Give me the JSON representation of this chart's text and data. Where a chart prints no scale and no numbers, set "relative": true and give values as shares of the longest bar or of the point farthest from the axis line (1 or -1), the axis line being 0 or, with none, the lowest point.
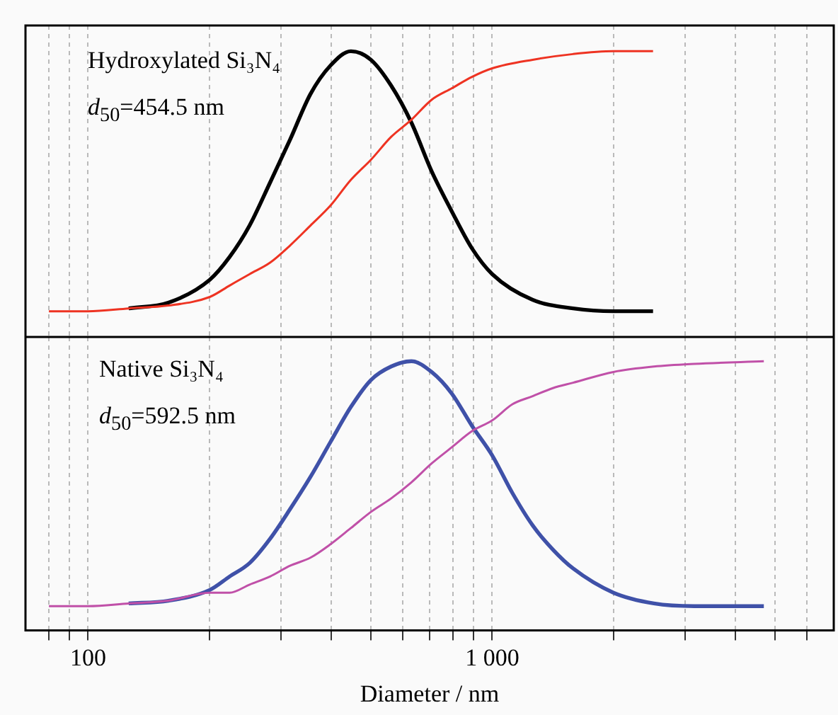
{
  "chart_data": [
    {
      "type": "line",
      "relative": true,
      "log": "x",
      "xlim": [
        70,
        7000
      ],
      "xticks": [
        {
          "value": 80,
          "label": null
        },
        {
          "value": 90,
          "label": null
        },
        {
          "value": 100,
          "label": null
        },
        {
          "value": 200,
          "label": null
        },
        {
          "value": 300,
          "label": null
        },
        {
          "value": 400,
          "label": null
        },
        {
          "value": 500,
          "label": null
        },
        {
          "value": 600,
          "label": null
        },
        {
          "value": 700,
          "label": null
        },
        {
          "value": 800,
          "label": null
        },
        {
          "value": 900,
          "label": null
        },
        {
          "value": 1000,
          "label": null
        },
        {
          "value": 2000,
          "label": null
        },
        {
          "value": 3000,
          "label": null
        },
        {
          "value": 4000,
          "label": null
        },
        {
          "value": 5000,
          "label": null
        },
        {
          "value": 6000,
          "label": null
        }
      ],
      "grid": "x",
      "tick_labels": false,
      "legend": false,
      "marker": "none",
      "annotations": [
        "Hydroxylated Si₃N₄",
        "d$_{50}$=454.5 nm"
      ],
      "series": [
        {
          "color": "#000000",
          "x": [
            126,
            158,
            200,
            224,
            251,
            282,
            316,
            355,
            398,
            447,
            501,
            562,
            631,
            708,
            794,
            891,
            1000,
            1259,
            1585,
            1995,
            2500
          ],
          "values": [
            0.1,
            0.12,
            0.2,
            0.28,
            0.39,
            0.54,
            0.69,
            0.85,
            0.95,
            1,
            0.97,
            0.88,
            0.75,
            0.58,
            0.44,
            0.31,
            0.22,
            0.13,
            0.1,
            0.09,
            0.09
          ]
        },
        {
          "color": "#ee3322",
          "x": [
            80,
            100,
            126,
            158,
            200,
            224,
            251,
            282,
            316,
            355,
            398,
            447,
            501,
            562,
            631,
            708,
            794,
            891,
            1000,
            1259,
            1585,
            1995,
            2500
          ],
          "values": [
            0.09,
            0.09,
            0.1,
            0.11,
            0.14,
            0.18,
            0.22,
            0.26,
            0.32,
            0.39,
            0.46,
            0.55,
            0.62,
            0.7,
            0.76,
            0.83,
            0.87,
            0.91,
            0.94,
            0.97,
            0.99,
            1,
            1
          ]
        }
      ]
    },
    {
      "type": "line",
      "relative": true,
      "log": "x",
      "xlim": [
        70,
        7000
      ],
      "xticks": [
        {
          "value": 80,
          "label": null
        },
        {
          "value": 90,
          "label": null
        },
        {
          "value": 100,
          "label": "100"
        },
        {
          "value": 200,
          "label": null
        },
        {
          "value": 300,
          "label": null
        },
        {
          "value": 400,
          "label": null
        },
        {
          "value": 500,
          "label": null
        },
        {
          "value": 600,
          "label": null
        },
        {
          "value": 700,
          "label": null
        },
        {
          "value": 800,
          "label": null
        },
        {
          "value": 900,
          "label": null
        },
        {
          "value": 1000,
          "label": "1 000"
        },
        {
          "value": 2000,
          "label": null
        },
        {
          "value": 3000,
          "label": null
        },
        {
          "value": 4000,
          "label": null
        },
        {
          "value": 5000,
          "label": null
        },
        {
          "value": 6000,
          "label": null
        }
      ],
      "grid": "x",
      "tick_labels": "x",
      "legend": false,
      "marker": "none",
      "xlabel": "Diameter / nm",
      "annotations": [
        "Native Si₃N₄",
        "d$_{50}$=592.5 nm"
      ],
      "series": [
        {
          "color": "#3f51a8",
          "x": [
            126,
            158,
            200,
            224,
            251,
            282,
            316,
            355,
            398,
            447,
            501,
            562,
            631,
            708,
            794,
            891,
            1000,
            1122,
            1259,
            1413,
            1585,
            1995,
            2512,
            3162,
            4700
          ],
          "values": [
            0.1,
            0.11,
            0.15,
            0.2,
            0.25,
            0.34,
            0.45,
            0.57,
            0.7,
            0.83,
            0.93,
            0.98,
            1,
            0.96,
            0.88,
            0.76,
            0.65,
            0.51,
            0.39,
            0.3,
            0.23,
            0.14,
            0.1,
            0.09,
            0.09
          ]
        },
        {
          "color": "#c050a8",
          "x": [
            80,
            100,
            126,
            158,
            200,
            224,
            251,
            282,
            316,
            355,
            398,
            447,
            501,
            562,
            631,
            708,
            794,
            891,
            1000,
            1122,
            1259,
            1413,
            1585,
            1995,
            2512,
            3162,
            4700
          ],
          "values": [
            0.09,
            0.09,
            0.1,
            0.11,
            0.14,
            0.14,
            0.17,
            0.2,
            0.24,
            0.27,
            0.32,
            0.38,
            0.44,
            0.49,
            0.55,
            0.62,
            0.68,
            0.74,
            0.78,
            0.84,
            0.87,
            0.9,
            0.92,
            0.96,
            0.98,
            0.99,
            1
          ]
        }
      ]
    }
  ]
}
